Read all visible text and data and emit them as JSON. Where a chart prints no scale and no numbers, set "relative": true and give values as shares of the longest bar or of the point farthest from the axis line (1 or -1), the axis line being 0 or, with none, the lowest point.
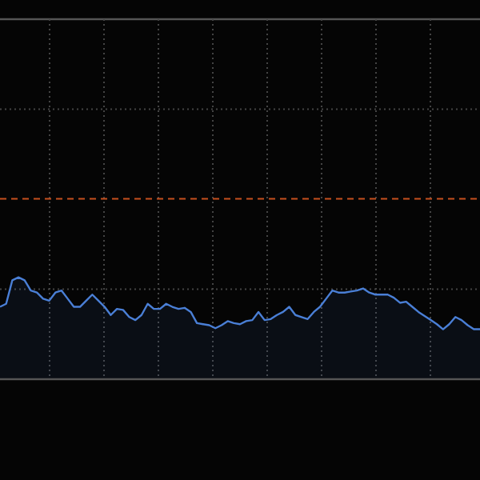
{
  "chart_data": {
    "type": "area",
    "relative": true,
    "grid": true,
    "categories": [
      null,
      null,
      null,
      null,
      null,
      null,
      null,
      null,
      null,
      null,
      null,
      null,
      null,
      null,
      null,
      null,
      null,
      null,
      null,
      null,
      null,
      null,
      null,
      null,
      null,
      null,
      null,
      null,
      null,
      null,
      null,
      null,
      null,
      null,
      null,
      null,
      null,
      null,
      null,
      null,
      null,
      null,
      null,
      null,
      null,
      null,
      null,
      null,
      null,
      null,
      null,
      null,
      null,
      null,
      null,
      null,
      null,
      null,
      null,
      null,
      null,
      null,
      null,
      null,
      null,
      null,
      null,
      null,
      null,
      null,
      null,
      null,
      null,
      null,
      null,
      null,
      null,
      null,
      null
    ],
    "series": [
      {
        "color": "#4a7fd6",
        "values": [
          0.71,
          0.74,
          0.97,
          1,
          0.97,
          0.87,
          0.85,
          0.79,
          0.77,
          0.85,
          0.87,
          0.79,
          0.71,
          0.71,
          0.77,
          0.83,
          0.77,
          0.71,
          0.63,
          0.69,
          0.68,
          0.61,
          0.58,
          0.63,
          0.74,
          0.69,
          0.69,
          0.74,
          0.71,
          0.69,
          0.7,
          0.66,
          0.55,
          0.54,
          0.53,
          0.5,
          0.53,
          0.57,
          0.55,
          0.54,
          0.57,
          0.58,
          0.66,
          0.58,
          0.59,
          0.63,
          0.66,
          0.71,
          0.63,
          0.61,
          0.59,
          0.66,
          0.71,
          0.79,
          0.87,
          0.85,
          0.85,
          0.86,
          0.87,
          0.89,
          0.85,
          0.83,
          0.83,
          0.83,
          0.8,
          0.75,
          0.76,
          0.71,
          0.66,
          0.62,
          0.58,
          0.54,
          0.49,
          0.54,
          0.61,
          0.58,
          0.53,
          0.49,
          0.49
        ]
      }
    ],
    "ref_lines": [
      {
        "axis": "y",
        "value": 1.77,
        "color": "#c8501e",
        "line_style": "dashed"
      }
    ]
  }
}
